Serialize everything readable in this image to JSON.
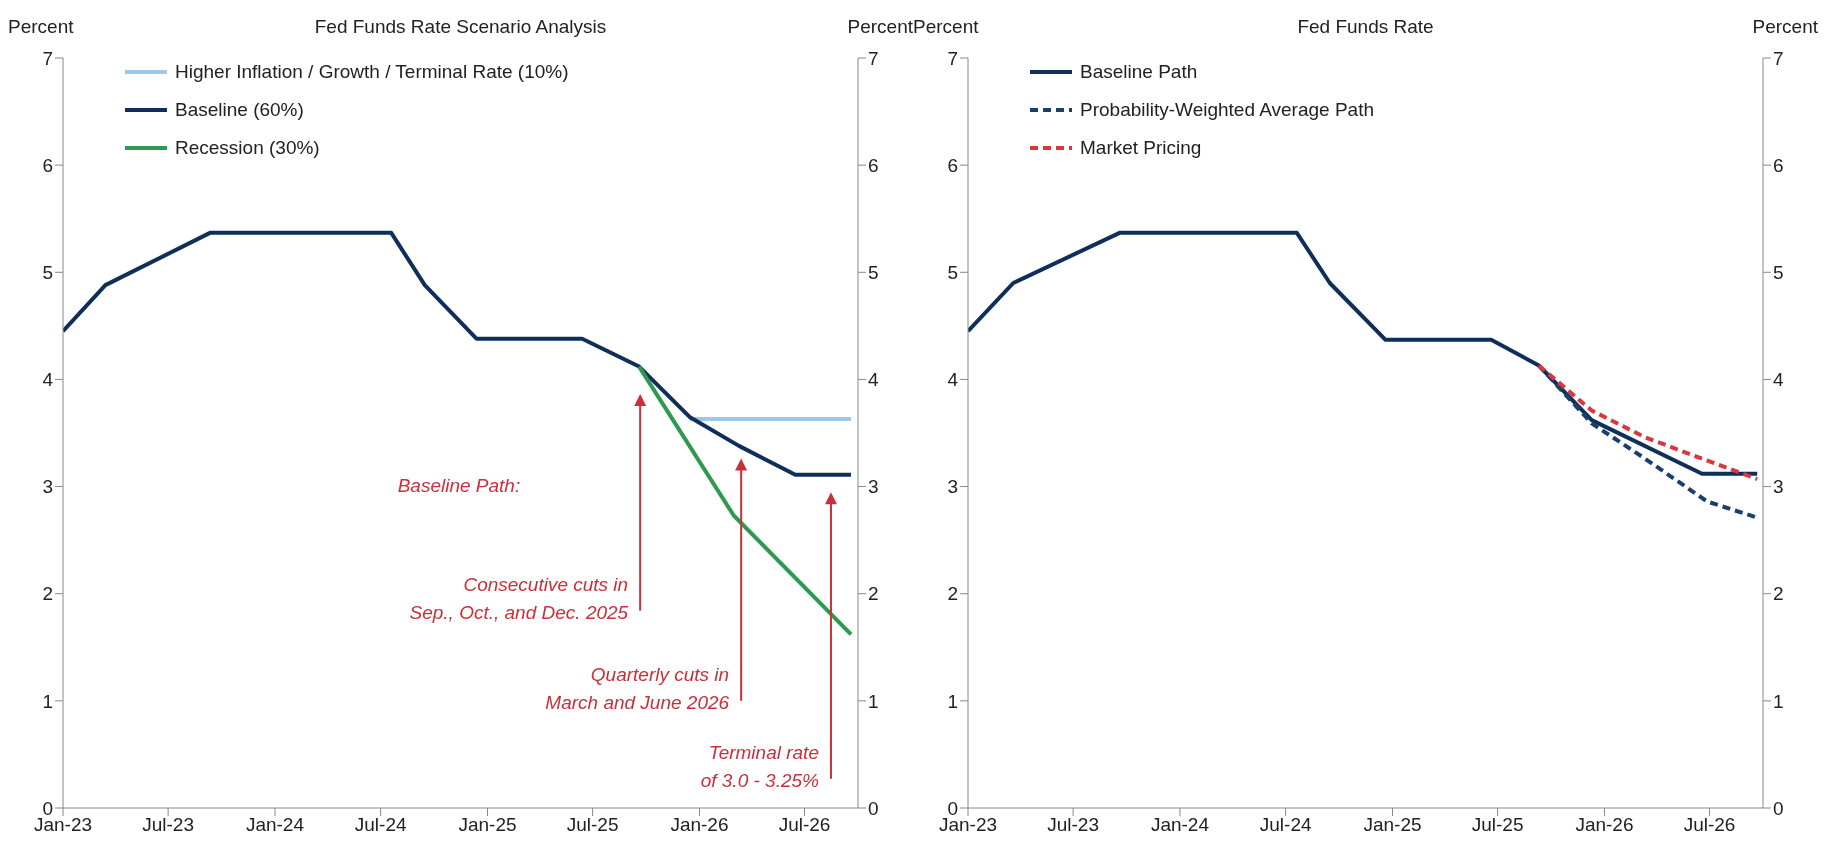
{
  "chart_data": [
    {
      "type": "line",
      "title": "Fed Funds Rate Scenario Analysis",
      "ylabel": "Percent",
      "y2label": "Percent",
      "xlim": [
        "2023-01",
        "2026-10"
      ],
      "xticks": [
        {
          "value": "2023-01",
          "label": "Jan-23"
        },
        {
          "value": "2023-07",
          "label": "Jul-23"
        },
        {
          "value": "2024-01",
          "label": "Jan-24"
        },
        {
          "value": "2024-07",
          "label": "Jul-24"
        },
        {
          "value": "2025-01",
          "label": "Jan-25"
        },
        {
          "value": "2025-07",
          "label": "Jul-25"
        },
        {
          "value": "2026-01",
          "label": "Jan-26"
        },
        {
          "value": "2026-07",
          "label": "Jul-26"
        }
      ],
      "ylim": [
        0,
        7
      ],
      "yticks": [
        0,
        1,
        2,
        3,
        4,
        5,
        6,
        7
      ],
      "y2lim": [
        0,
        7
      ],
      "y2ticks": [
        0,
        1,
        2,
        3,
        4,
        5,
        6,
        7
      ],
      "legend": "top left",
      "grid": false,
      "series": [
        {
          "name": "Higher Inflation / Growth / Terminal Rate (10%)",
          "color": "#9dc8ea",
          "x": [
            "2025-12-15",
            "2026-09-19"
          ],
          "values": [
            3.63,
            3.63
          ]
        },
        {
          "name": "Baseline (60%)",
          "color": "#0d2f5a",
          "x": [
            "2023-01-01",
            "2023-03-15",
            "2023-09-12",
            "2024-07-19",
            "2024-09-15",
            "2024-12-13",
            "2025-06-13",
            "2025-09-19",
            "2025-12-15",
            "2026-03-10",
            "2026-06-15",
            "2026-09-19"
          ],
          "values": [
            4.45,
            4.88,
            5.37,
            5.37,
            4.88,
            4.38,
            4.38,
            4.12,
            3.65,
            3.38,
            3.11,
            3.11
          ]
        },
        {
          "name": "Recession (30%)",
          "color": "#2e9a4f",
          "x": [
            "2025-09-19",
            "2026-03-01",
            "2026-09-19"
          ],
          "values": [
            4.12,
            2.73,
            1.62
          ]
        }
      ],
      "annotations": [
        "Baseline Path:",
        "Consecutive cuts in\nSep., Oct.,  and Dec. 2025",
        "Quarterly cuts in\nMarch and June 2026",
        "Terminal rate\nof 3.0 - 3.25%"
      ]
    },
    {
      "type": "line",
      "title": "Fed Funds Rate",
      "ylabel": "Percent",
      "y2label": "Percent",
      "xlim": [
        "2023-01",
        "2026-10"
      ],
      "xticks": [
        {
          "value": "2023-01",
          "label": "Jan-23"
        },
        {
          "value": "2023-07",
          "label": "Jul-23"
        },
        {
          "value": "2024-01",
          "label": "Jan-24"
        },
        {
          "value": "2024-07",
          "label": "Jul-24"
        },
        {
          "value": "2025-01",
          "label": "Jan-25"
        },
        {
          "value": "2025-07",
          "label": "Jul-25"
        },
        {
          "value": "2026-01",
          "label": "Jan-26"
        },
        {
          "value": "2026-07",
          "label": "Jul-26"
        }
      ],
      "ylim": [
        0,
        7
      ],
      "yticks": [
        0,
        1,
        2,
        3,
        4,
        5,
        6,
        7
      ],
      "y2lim": [
        0,
        7
      ],
      "y2ticks": [
        0,
        1,
        2,
        3,
        4,
        5,
        6,
        7
      ],
      "legend": "top left",
      "grid": false,
      "series": [
        {
          "name": "Baseline Path",
          "color": "#0d2f5a",
          "x": [
            "2023-01-01",
            "2023-03-20",
            "2023-09-20",
            "2024-07-20",
            "2024-09-15",
            "2024-12-20",
            "2025-06-20",
            "2025-09-10",
            "2025-12-10",
            "2026-06-18",
            "2026-09-21"
          ],
          "values": [
            4.45,
            4.9,
            5.37,
            5.37,
            4.9,
            4.37,
            4.37,
            4.13,
            3.62,
            3.12,
            3.12
          ]
        },
        {
          "name": "Probability-Weighted Average Path",
          "color": "#1a3f6b",
          "line_style": "dashed",
          "x": [
            "2025-09-10",
            "2025-12-10",
            "2026-03-12",
            "2026-06-27",
            "2026-09-21"
          ],
          "values": [
            4.13,
            3.59,
            3.26,
            2.86,
            2.71
          ]
        },
        {
          "name": "Market Pricing",
          "color": "#d9363e",
          "line_style": "dashed",
          "x": [
            "2025-09-10",
            "2025-12-10",
            "2026-03-12",
            "2026-06-18",
            "2026-09-21"
          ],
          "values": [
            4.13,
            3.71,
            3.46,
            3.26,
            3.07
          ]
        }
      ]
    }
  ]
}
